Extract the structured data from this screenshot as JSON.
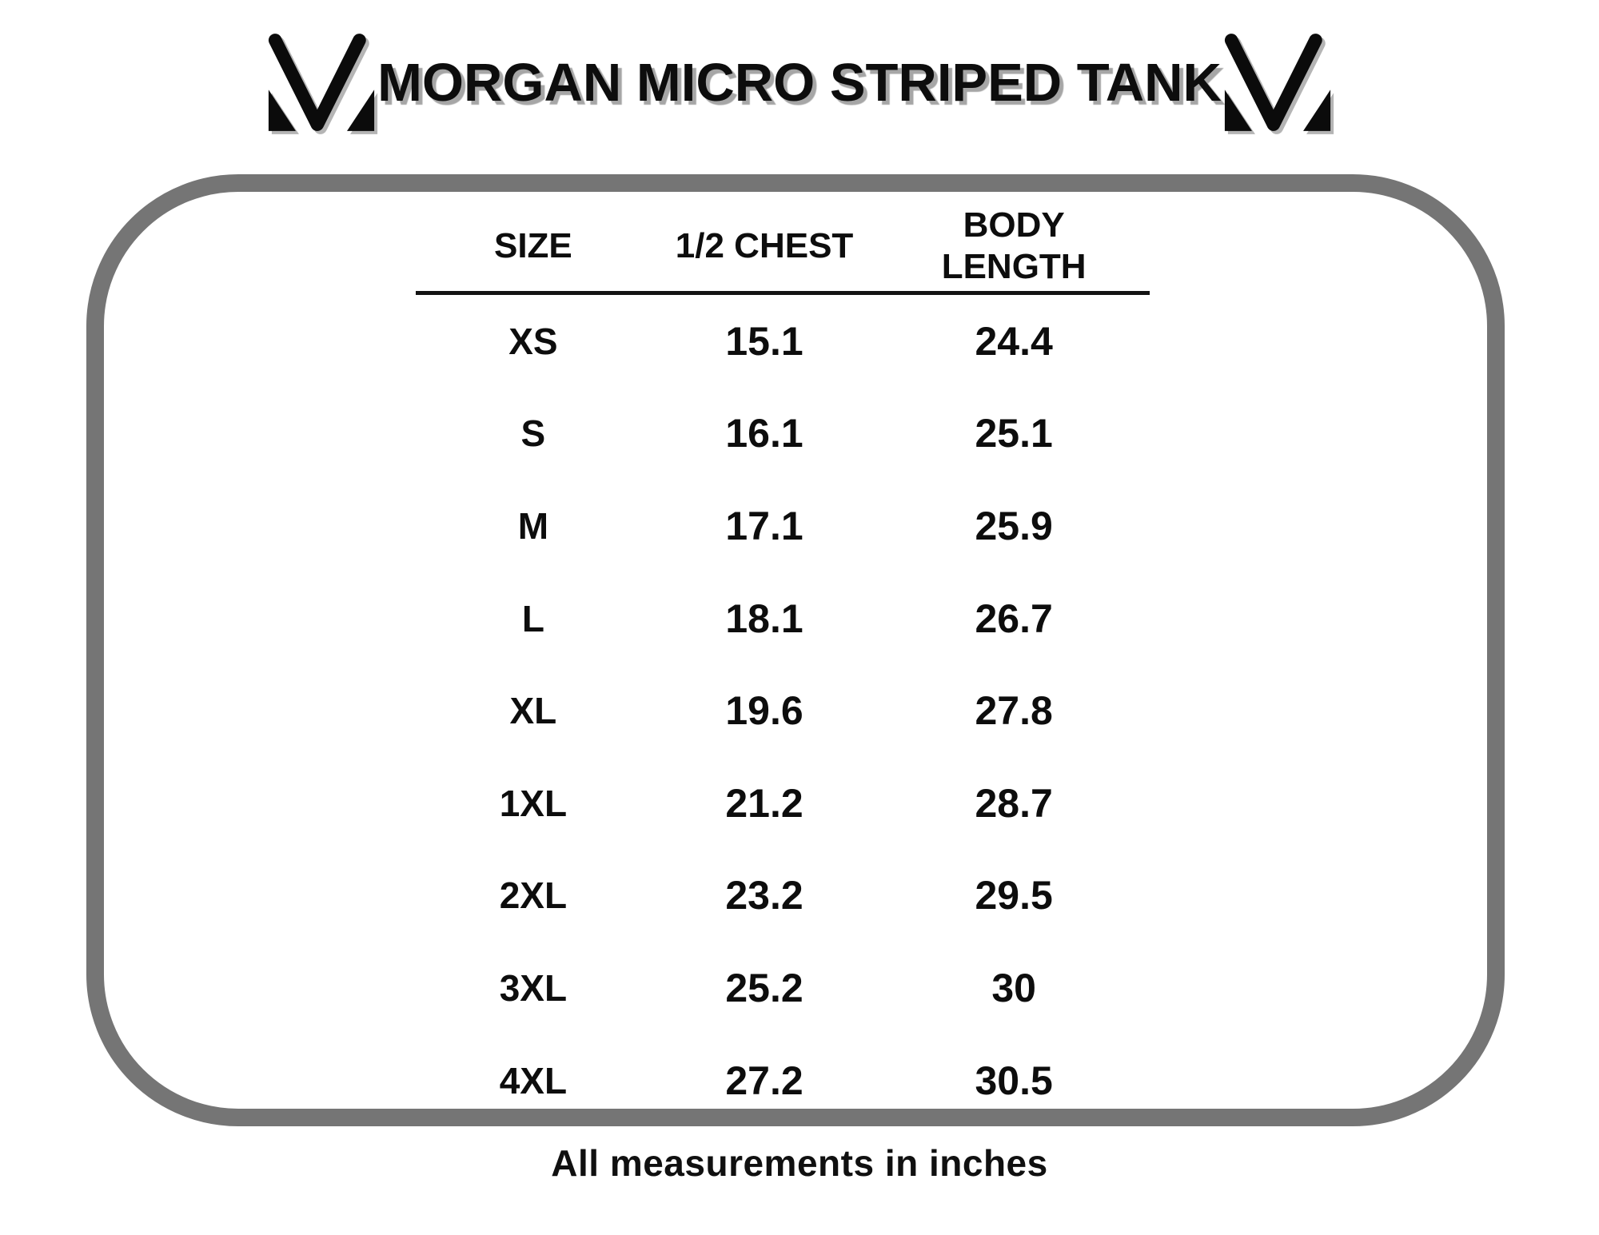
{
  "page_title": "MORGAN MICRO STRIPED TANK",
  "brand_logo": "mv-monogram",
  "size_chart": {
    "columns": [
      "SIZE",
      "1/2 CHEST",
      "BODY LENGTH"
    ],
    "rows": [
      {
        "size": "XS",
        "half_chest": "15.1",
        "body_length": "24.4"
      },
      {
        "size": "S",
        "half_chest": "16.1",
        "body_length": "25.1"
      },
      {
        "size": "M",
        "half_chest": "17.1",
        "body_length": "25.9"
      },
      {
        "size": "L",
        "half_chest": "18.1",
        "body_length": "26.7"
      },
      {
        "size": "XL",
        "half_chest": "19.6",
        "body_length": "27.8"
      },
      {
        "size": "1XL",
        "half_chest": "21.2",
        "body_length": "28.7"
      },
      {
        "size": "2XL",
        "half_chest": "23.2",
        "body_length": "29.5"
      },
      {
        "size": "3XL",
        "half_chest": "25.2",
        "body_length": "30"
      },
      {
        "size": "4XL",
        "half_chest": "27.2",
        "body_length": "30.5"
      }
    ]
  },
  "footnote": "All measurements in inches",
  "colors": {
    "text": "#0d0d0d",
    "frame_border": "#757575",
    "title_shadow": "#a6a6a6"
  }
}
